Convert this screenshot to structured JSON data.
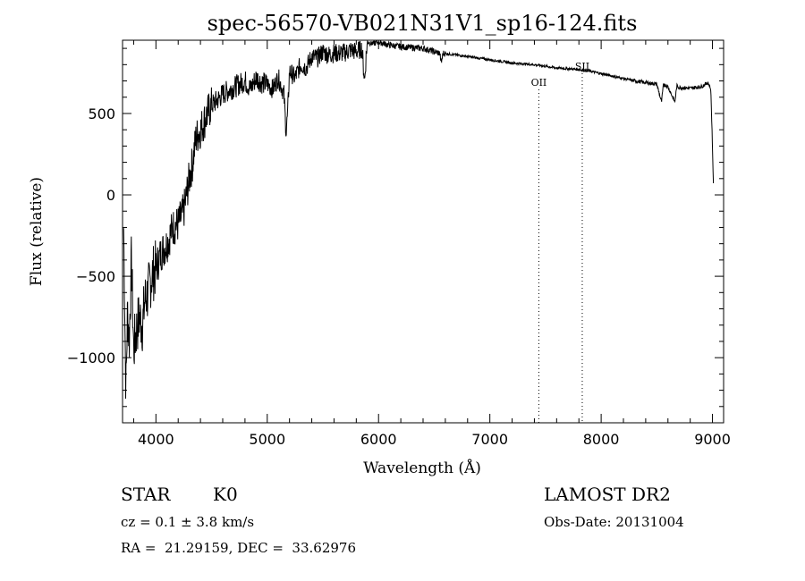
{
  "chart_data": {
    "type": "line",
    "title": "spec-56570-VB021N31V1_sp16-124.fits",
    "xlabel": "Wavelength (Å)",
    "ylabel": "Flux (relative)",
    "xlim": [
      3700,
      9100
    ],
    "ylim": [
      -1400,
      950
    ],
    "x_ticks": [
      4000,
      5000,
      6000,
      7000,
      8000,
      9000
    ],
    "y_ticks": [
      -1000,
      -500,
      0,
      500
    ],
    "grid": false,
    "legend": "none",
    "line_color": "#000000",
    "series": [
      {
        "x": [
          3710,
          3730,
          3745,
          3760,
          3780,
          3800,
          3820,
          3850,
          3880,
          3900,
          3930,
          3960,
          4000,
          4050,
          4100,
          4150,
          4200,
          4250,
          4300,
          4330,
          4360,
          4400,
          4450,
          4500,
          4550,
          4600,
          4650,
          4700,
          4750,
          4800,
          4850,
          4900,
          4950,
          5000,
          5050,
          5100,
          5150,
          5170,
          5185,
          5200,
          5250,
          5300,
          5350,
          5400,
          5450,
          5500,
          5550,
          5600,
          5650,
          5700,
          5750,
          5800,
          5850,
          5875,
          5890,
          5900,
          5950,
          6000,
          6100,
          6200,
          6300,
          6400,
          6500,
          6550,
          6563,
          6580,
          6700,
          6800,
          6900,
          7000,
          7100,
          7200,
          7300,
          7400,
          7500,
          7600,
          7700,
          7800,
          7900,
          8000,
          8100,
          8200,
          8300,
          8400,
          8500,
          8542,
          8560,
          8600,
          8662,
          8680,
          8700,
          8800,
          8900,
          8960,
          8985,
          9000,
          9010
        ],
        "y": [
          -200,
          -1200,
          -700,
          -900,
          -400,
          -950,
          -850,
          -750,
          -800,
          -650,
          -600,
          -500,
          -450,
          -350,
          -300,
          -200,
          -180,
          -100,
          100,
          200,
          350,
          400,
          480,
          550,
          580,
          620,
          640,
          660,
          680,
          700,
          650,
          720,
          690,
          680,
          650,
          720,
          620,
          380,
          520,
          760,
          720,
          800,
          780,
          850,
          840,
          880,
          860,
          870,
          870,
          875,
          890,
          880,
          900,
          700,
          870,
          940,
          930,
          940,
          920,
          910,
          905,
          900,
          880,
          870,
          810,
          870,
          860,
          850,
          840,
          830,
          820,
          810,
          805,
          800,
          790,
          780,
          775,
          770,
          760,
          745,
          730,
          715,
          700,
          690,
          680,
          570,
          680,
          665,
          570,
          670,
          660,
          655,
          665,
          690,
          650,
          300,
          0
        ]
      }
    ],
    "lines": [
      {
        "label": "OII",
        "x": 7440
      },
      {
        "label": "SII",
        "x": 7830
      }
    ]
  },
  "info": {
    "object_class": "STAR",
    "subclass": "K0",
    "survey": "LAMOST DR2",
    "redshift_text": "cz = 0.1 ± 3.8 km/s",
    "obs_date": "Obs-Date: 20131004",
    "coords": "RA =  21.29159, DEC =  33.62976"
  }
}
